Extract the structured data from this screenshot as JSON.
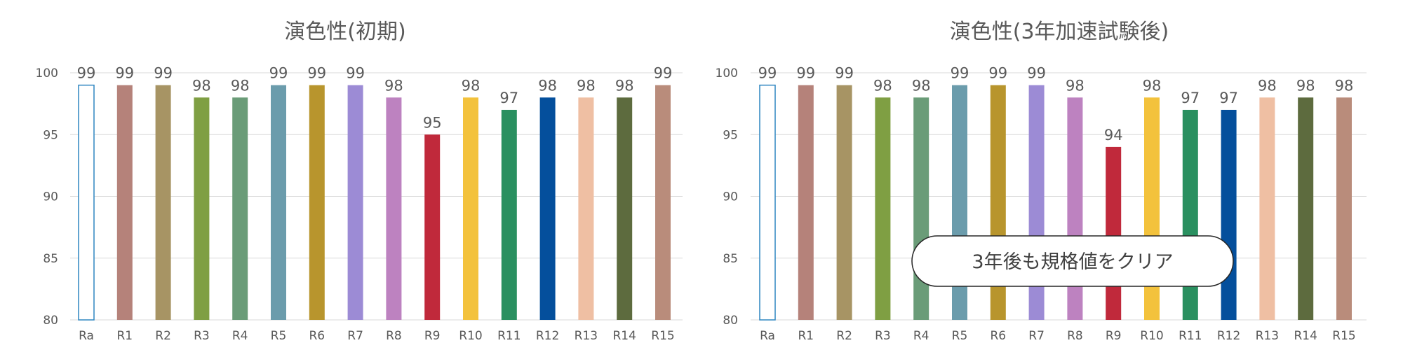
{
  "chart_data": [
    {
      "type": "bar",
      "title": "演色性(初期)",
      "categories": [
        "Ra",
        "R1",
        "R2",
        "R3",
        "R4",
        "R5",
        "R6",
        "R7",
        "R8",
        "R9",
        "R10",
        "R11",
        "R12",
        "R13",
        "R14",
        "R15"
      ],
      "values": [
        99,
        99,
        99,
        98,
        98,
        99,
        99,
        99,
        98,
        95,
        98,
        97,
        98,
        98,
        98,
        99
      ],
      "ylim": [
        80,
        100
      ],
      "yticks": [
        80,
        85,
        90,
        95,
        100
      ],
      "grid": true,
      "colors": [
        "#ffffff",
        "#b5827a",
        "#a79464",
        "#7f9f43",
        "#6a9c78",
        "#6b9cac",
        "#b8952d",
        "#9c8bd5",
        "#bd82c0",
        "#c0293b",
        "#f3c23c",
        "#2a9060",
        "#044f9c",
        "#efbfa3",
        "#5d6b3e",
        "#b98c7b"
      ]
    },
    {
      "type": "bar",
      "title": "演色性(3年加速試験後)",
      "categories": [
        "Ra",
        "R1",
        "R2",
        "R3",
        "R4",
        "R5",
        "R6",
        "R7",
        "R8",
        "R9",
        "R10",
        "R11",
        "R12",
        "R13",
        "R14",
        "R15"
      ],
      "values": [
        99,
        99,
        99,
        98,
        98,
        99,
        99,
        99,
        98,
        94,
        98,
        97,
        97,
        98,
        98,
        98
      ],
      "ylim": [
        80,
        100
      ],
      "yticks": [
        80,
        85,
        90,
        95,
        100
      ],
      "grid": true,
      "colors": [
        "#ffffff",
        "#b5827a",
        "#a79464",
        "#7f9f43",
        "#6a9c78",
        "#6b9cac",
        "#b8952d",
        "#9c8bd5",
        "#bd82c0",
        "#c0293b",
        "#f3c23c",
        "#2a9060",
        "#044f9c",
        "#efbfa3",
        "#5d6b3e",
        "#b98c7b"
      ],
      "annotation": "3年後も規格値をクリア"
    }
  ],
  "style": {
    "ra_outline_color": "#2e86c1",
    "grid_color": "#d9d9d9",
    "text_color": "#595959"
  }
}
